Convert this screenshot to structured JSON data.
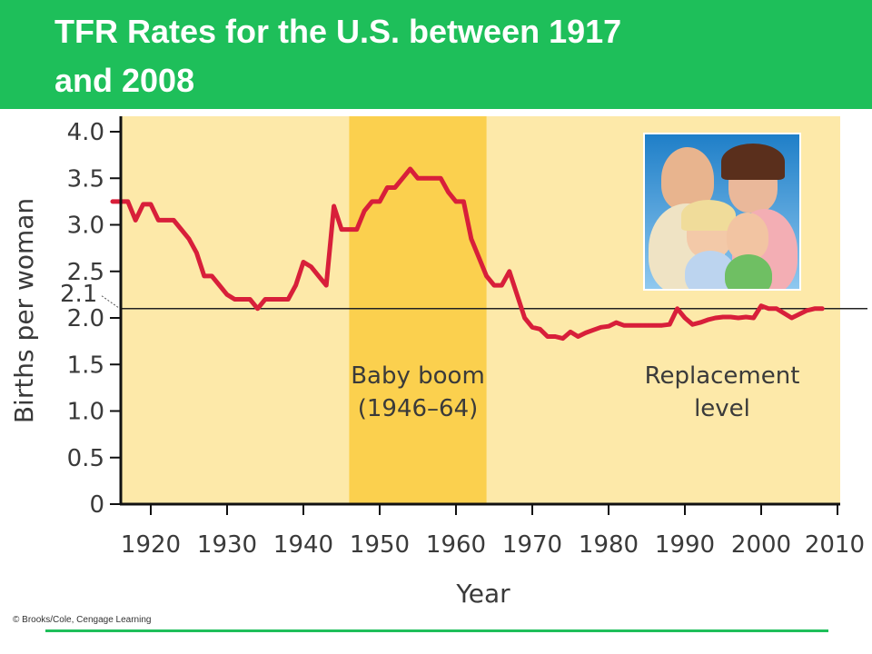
{
  "slide": {
    "title_line1": "TFR Rates for the U.S. between 1917",
    "title_line2": "and 2008",
    "credit": "© Brooks/Cole, Cengage Learning",
    "accent_color": "#1ebf5a"
  },
  "photo": {
    "icon": "family-photo",
    "description_visible": false
  },
  "chart_data": {
    "type": "line",
    "title": "",
    "xlabel": "Year",
    "ylabel": "Births per woman",
    "xlim": [
      1915,
      2010
    ],
    "ylim": [
      0,
      4.0
    ],
    "x_ticks": [
      1920,
      1930,
      1940,
      1950,
      1960,
      1970,
      1980,
      1990,
      2000,
      2010
    ],
    "x_tick_labels": [
      "1920",
      "1930",
      "1940",
      "1950",
      "1960",
      "1970",
      "1980",
      "1990",
      "2000",
      "2010"
    ],
    "y_ticks": [
      0,
      0.5,
      1.0,
      1.5,
      2.0,
      2.5,
      3.0,
      3.5,
      4.0
    ],
    "y_tick_labels": [
      "0",
      "0.5",
      "1.0",
      "1.5",
      "2.0",
      "2.5",
      "3.0",
      "3.5",
      "4.0"
    ],
    "grid": false,
    "line_color": "#d81f3a",
    "background_color": "#fde9a9",
    "highlight_color": "#fbd04e",
    "replacement_level": {
      "value": 2.1,
      "label": "2.1",
      "text_line1": "Replacement",
      "text_line2": "level"
    },
    "highlight_band": {
      "x_start": 1946,
      "x_end": 1964,
      "label_line1": "Baby boom",
      "label_line2": "(1946–64)"
    },
    "series": [
      {
        "x": [
          1915,
          1917,
          1918,
          1919,
          1920,
          1921,
          1922,
          1923,
          1924,
          1925,
          1926,
          1927,
          1928,
          1929,
          1930,
          1931,
          1932,
          1933,
          1934,
          1935,
          1936,
          1937,
          1938,
          1939,
          1940,
          1941,
          1942,
          1943,
          1944,
          1945,
          1946,
          1947,
          1948,
          1949,
          1950,
          1951,
          1952,
          1953,
          1954,
          1955,
          1956,
          1957,
          1958,
          1959,
          1960,
          1961,
          1962,
          1963,
          1964,
          1965,
          1966,
          1967,
          1968,
          1969,
          1970,
          1971,
          1972,
          1973,
          1974,
          1975,
          1976,
          1977,
          1978,
          1979,
          1980,
          1981,
          1982,
          1983,
          1984,
          1985,
          1986,
          1987,
          1988,
          1989,
          1990,
          1991,
          1992,
          1993,
          1994,
          1995,
          1996,
          1997,
          1998,
          1999,
          2000,
          2001,
          2002,
          2003,
          2004,
          2005,
          2006,
          2007,
          2008
        ],
        "values": [
          3.25,
          3.25,
          3.05,
          3.22,
          3.22,
          3.05,
          3.05,
          3.05,
          2.95,
          2.85,
          2.7,
          2.45,
          2.45,
          2.35,
          2.25,
          2.2,
          2.2,
          2.2,
          2.1,
          2.2,
          2.2,
          2.2,
          2.2,
          2.35,
          2.6,
          2.55,
          2.45,
          2.35,
          3.2,
          2.95,
          2.95,
          2.95,
          3.15,
          3.25,
          3.25,
          3.4,
          3.4,
          3.5,
          3.6,
          3.5,
          3.5,
          3.5,
          3.5,
          3.35,
          3.25,
          3.25,
          2.85,
          2.65,
          2.45,
          2.35,
          2.35,
          2.5,
          2.25,
          2.0,
          1.9,
          1.88,
          1.8,
          1.8,
          1.78,
          1.85,
          1.8,
          1.84,
          1.87,
          1.9,
          1.91,
          1.95,
          1.92,
          1.92,
          1.92,
          1.92,
          1.92,
          1.92,
          1.93,
          2.1,
          2.0,
          1.93,
          1.95,
          1.98,
          2.0,
          2.01,
          2.01,
          2.0,
          2.01,
          2.0,
          2.13,
          2.1,
          2.1,
          2.05,
          2.0,
          2.04,
          2.08,
          2.1,
          2.1
        ]
      }
    ]
  }
}
